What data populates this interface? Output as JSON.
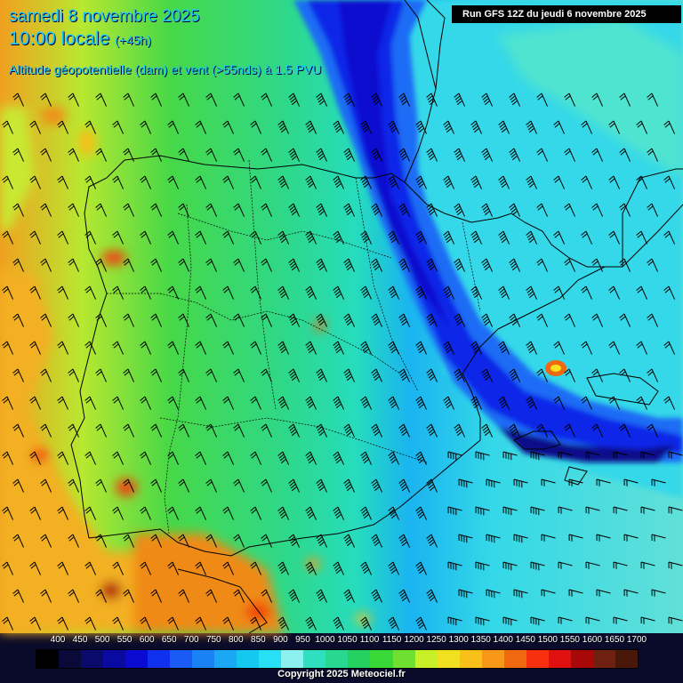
{
  "header": {
    "date_line": "samedi 8 novembre 2025",
    "time_line": "10:00 locale",
    "lead_time": "(+45h)",
    "subtitle": "Altitude géopotentielle (dam) et vent (>55nds) à 1.5 PVU",
    "run_info": "Run GFS 12Z du jeudi 6 novembre 2025"
  },
  "legend": {
    "values": [
      "400",
      "450",
      "500",
      "550",
      "600",
      "650",
      "700",
      "750",
      "800",
      "850",
      "900",
      "950",
      "1000",
      "1050",
      "1100",
      "1150",
      "1200",
      "1250",
      "1300",
      "1350",
      "1400",
      "1450",
      "1500",
      "1550",
      "1600",
      "1650",
      "1700"
    ],
    "colors": [
      "#000000",
      "#0a0a3a",
      "#0a0a6a",
      "#0a0aa0",
      "#0a0ad0",
      "#1030f0",
      "#1a5af5",
      "#1a82f5",
      "#1aa8f5",
      "#14c8f0",
      "#28e0f5",
      "#8af0f0",
      "#2ee0c0",
      "#28d890",
      "#24d060",
      "#38d838",
      "#70e030",
      "#c8f028",
      "#f0e020",
      "#f8c018",
      "#f89818",
      "#f06810",
      "#f83010",
      "#e01010",
      "#a80808",
      "#702010",
      "#4a1808"
    ]
  },
  "map_info": {
    "region": "Péninsule Ibérique et sud de la France",
    "field": "geopotential at 1.5 PVU",
    "wind_barbs": "shown where wind > 55 kt"
  },
  "footer": {
    "copyright": "Copyright 2025 Meteociel.fr"
  }
}
